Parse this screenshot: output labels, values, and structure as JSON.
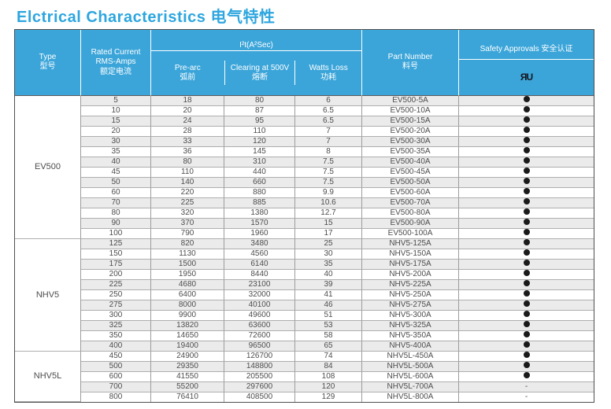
{
  "page_title": "Elctrical Characteristics 电气特性",
  "colors": {
    "accent_blue": "#2ea6df",
    "header_blue": "#3ba5d9",
    "stripe_gray": "#ebebeb",
    "dot_black": "#1a1a1a"
  },
  "table": {
    "headers": {
      "type": [
        "Type",
        "型号"
      ],
      "rated_current": [
        "Rated Current",
        "RMS-Amps",
        "额定电流"
      ],
      "i2t_group": "I²t(A²Sec)",
      "pre_arc": [
        "Pre-arc",
        "弧前"
      ],
      "clearing": [
        "Clearing at 500V",
        "熔断"
      ],
      "watts_loss": [
        "Watts Loss",
        "功耗"
      ],
      "part_number": [
        "Part Number",
        "料号"
      ],
      "safety_approvals": "Safety Approvals 安全认证",
      "ul_mark": "ЯU"
    },
    "columns_order": [
      "Rated Current RMS-Amps",
      "Pre-arc I²t",
      "Clearing I²t at 500V",
      "Watts Loss",
      "Part Number",
      "Safety Approval"
    ],
    "approval_legend": {
      "dot": "UL recognized",
      "dash": "-"
    },
    "sections": [
      {
        "type": "EV500",
        "rows": [
          [
            "5",
            "18",
            "80",
            "6",
            "EV500-5A",
            "dot"
          ],
          [
            "10",
            "20",
            "87",
            "6.5",
            "EV500-10A",
            "dot"
          ],
          [
            "15",
            "24",
            "95",
            "6.5",
            "EV500-15A",
            "dot"
          ],
          [
            "20",
            "28",
            "110",
            "7",
            "EV500-20A",
            "dot"
          ],
          [
            "30",
            "33",
            "120",
            "7",
            "EV500-30A",
            "dot"
          ],
          [
            "35",
            "36",
            "145",
            "8",
            "EV500-35A",
            "dot"
          ],
          [
            "40",
            "80",
            "310",
            "7.5",
            "EV500-40A",
            "dot"
          ],
          [
            "45",
            "110",
            "440",
            "7.5",
            "EV500-45A",
            "dot"
          ],
          [
            "50",
            "140",
            "660",
            "7.5",
            "EV500-50A",
            "dot"
          ],
          [
            "60",
            "220",
            "880",
            "9.9",
            "EV500-60A",
            "dot"
          ],
          [
            "70",
            "225",
            "885",
            "10.6",
            "EV500-70A",
            "dot"
          ],
          [
            "80",
            "320",
            "1380",
            "12.7",
            "EV500-80A",
            "dot"
          ],
          [
            "90",
            "370",
            "1570",
            "15",
            "EV500-90A",
            "dot"
          ],
          [
            "100",
            "790",
            "1960",
            "17",
            "EV500-100A",
            "dot"
          ]
        ]
      },
      {
        "type": "NHV5",
        "rows": [
          [
            "125",
            "820",
            "3480",
            "25",
            "NHV5-125A",
            "dot"
          ],
          [
            "150",
            "1130",
            "4560",
            "30",
            "NHV5-150A",
            "dot"
          ],
          [
            "175",
            "1500",
            "6140",
            "35",
            "NHV5-175A",
            "dot"
          ],
          [
            "200",
            "1950",
            "8440",
            "40",
            "NHV5-200A",
            "dot"
          ],
          [
            "225",
            "4680",
            "23100",
            "39",
            "NHV5-225A",
            "dot"
          ],
          [
            "250",
            "6400",
            "32000",
            "41",
            "NHV5-250A",
            "dot"
          ],
          [
            "275",
            "8000",
            "40100",
            "46",
            "NHV5-275A",
            "dot"
          ],
          [
            "300",
            "9900",
            "49600",
            "51",
            "NHV5-300A",
            "dot"
          ],
          [
            "325",
            "13820",
            "63600",
            "53",
            "NHV5-325A",
            "dot"
          ],
          [
            "350",
            "14650",
            "72600",
            "58",
            "NHV5-350A",
            "dot"
          ],
          [
            "400",
            "19400",
            "96500",
            "65",
            "NHV5-400A",
            "dot"
          ]
        ]
      },
      {
        "type": "NHV5L",
        "rows": [
          [
            "450",
            "24900",
            "126700",
            "74",
            "NHV5L-450A",
            "dot"
          ],
          [
            "500",
            "29350",
            "148800",
            "84",
            "NHV5L-500A",
            "dot"
          ],
          [
            "600",
            "41550",
            "205500",
            "108",
            "NHV5L-600A",
            "dot"
          ],
          [
            "700",
            "55200",
            "297600",
            "120",
            "NHV5L-700A",
            "dash"
          ],
          [
            "800",
            "76410",
            "408500",
            "129",
            "NHV5L-800A",
            "dash"
          ]
        ]
      }
    ]
  }
}
